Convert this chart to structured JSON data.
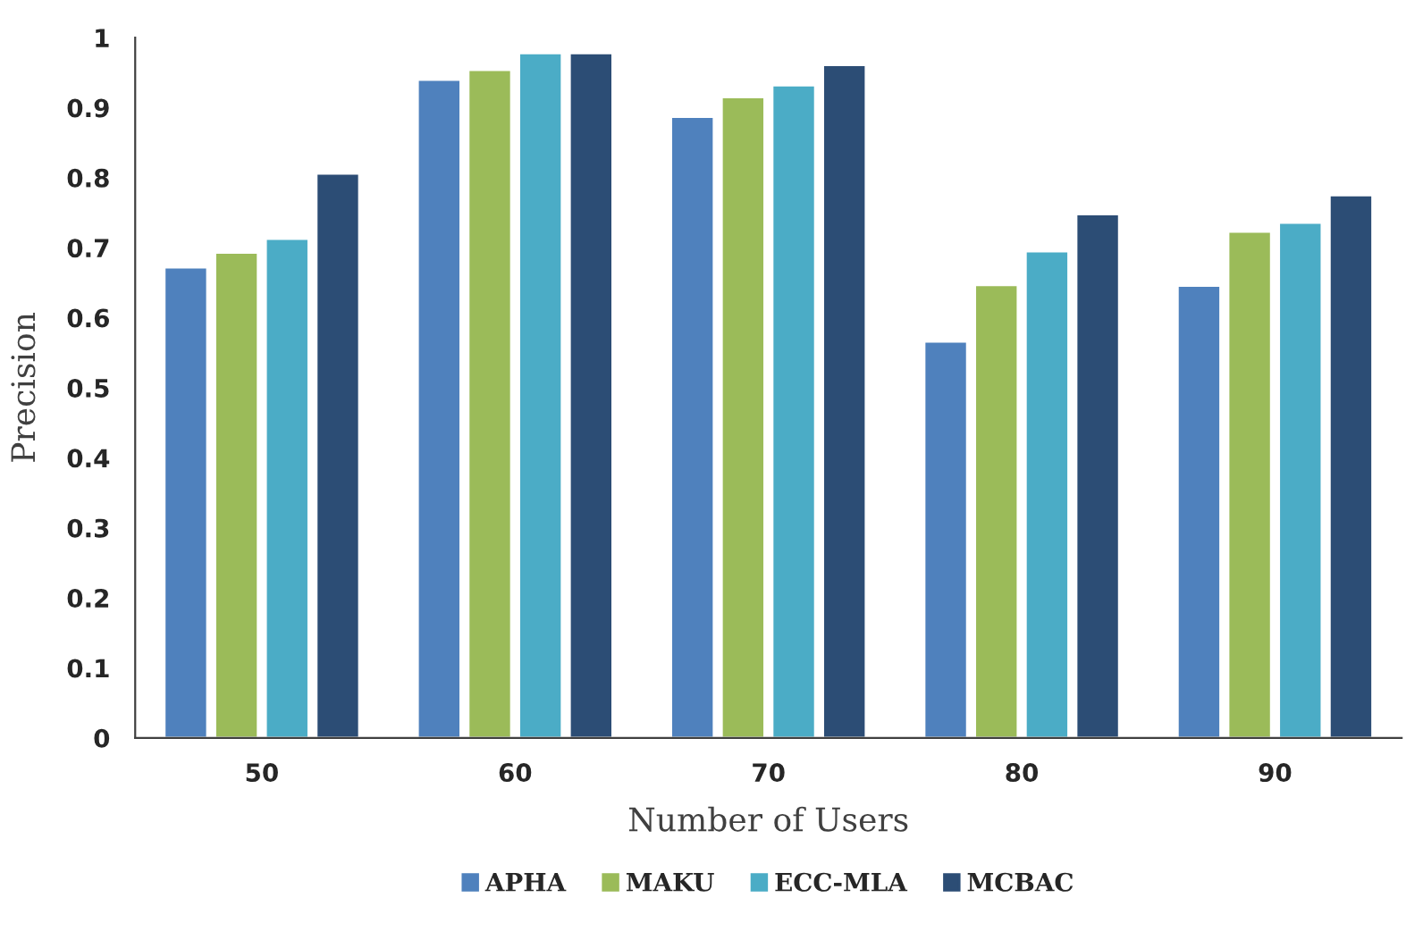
{
  "chart_data": {
    "type": "bar",
    "xlabel": "Number of Users",
    "ylabel": "Precision",
    "categories": [
      "50",
      "60",
      "70",
      "80",
      "90"
    ],
    "series": [
      {
        "name": "APHA",
        "color": "#4f81bd",
        "values": [
          0.672,
          0.94,
          0.887,
          0.566,
          0.646
        ]
      },
      {
        "name": "MAKU",
        "color": "#9bbb59",
        "values": [
          0.693,
          0.954,
          0.915,
          0.647,
          0.723
        ]
      },
      {
        "name": "ECC-MLA",
        "color": "#4bacc6",
        "values": [
          0.713,
          0.978,
          0.932,
          0.695,
          0.736
        ]
      },
      {
        "name": "MCBAC",
        "color": "#2c4d75",
        "values": [
          0.806,
          0.978,
          0.961,
          0.748,
          0.775
        ]
      }
    ],
    "ylim": [
      0,
      1
    ],
    "yticks": [
      0,
      0.1,
      0.2,
      0.3,
      0.4,
      0.5,
      0.6,
      0.7,
      0.8,
      0.9,
      1
    ],
    "grid": false,
    "legend": "bottom"
  }
}
